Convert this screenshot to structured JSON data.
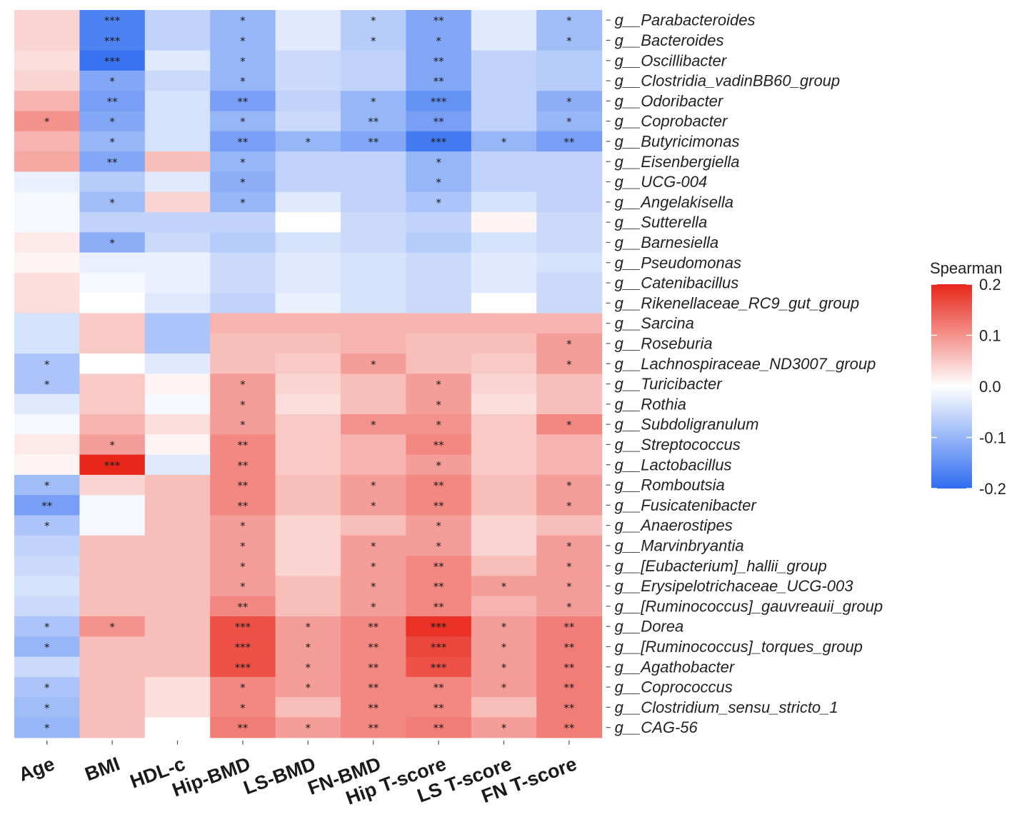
{
  "chart_data": {
    "type": "heatmap",
    "title": "",
    "legend_title": "Spearman",
    "legend_ticks": [
      0.2,
      0.1,
      0.0,
      -0.1,
      -0.2
    ],
    "legend_tick_labels": [
      "0.2",
      "0.1",
      "0.0",
      "-0.1",
      "-0.2"
    ],
    "color_range": [
      -0.2,
      0.2
    ],
    "colors": {
      "low": "#2f6cf0",
      "mid": "#ffffff",
      "high": "#e8261a"
    },
    "legend_position": "right",
    "columns": [
      "Age",
      "BMI",
      "HDL-c",
      "Hip-BMD",
      "LS-BMD",
      "FN-BMD",
      "Hip T-score",
      "LS T-score",
      "FN T-score"
    ],
    "rows": [
      "g__Parabacteroides",
      "g__Bacteroides",
      "g__Oscillibacter",
      "g__Clostridia_vadinBB60_group",
      "g__Odoribacter",
      "g__Coprobacter",
      "g__Butyricimonas",
      "g__Eisenbergiella",
      "g__UCG-004",
      "g__Angelakisella",
      "g__Sutterella",
      "g__Barnesiella",
      "g__Pseudomonas",
      "g__Catenibacillus",
      "g__Rikenellaceae_RC9_gut_group",
      "g__Sarcina",
      "g__Roseburia",
      "g__Lachnospiraceae_ND3007_group",
      "g__Turicibacter",
      "g__Rothia",
      "g__Subdoligranulum",
      "g__Streptococcus",
      "g__Lactobacillus",
      "g__Romboutsia",
      "g__Fusicatenibacter",
      "g__Anaerostipes",
      "g__Marvinbryantia",
      "g__[Eubacterium]_hallii_group",
      "g__Erysipelotrichaceae_UCG-003",
      "g__[Ruminococcus]_gauvreauii_group",
      "g__Dorea",
      "g__[Ruminococcus]_torques_group",
      "g__Agathobacter",
      "g__Coprococcus",
      "g__Clostridium_sensu_stricto_1",
      "g__CAG-56"
    ],
    "values": [
      [
        0.04,
        -0.17,
        -0.06,
        -0.1,
        -0.03,
        -0.07,
        -0.12,
        -0.03,
        -0.09
      ],
      [
        0.04,
        -0.17,
        -0.06,
        -0.1,
        -0.03,
        -0.07,
        -0.12,
        -0.03,
        -0.09
      ],
      [
        0.03,
        -0.19,
        -0.03,
        -0.1,
        -0.05,
        -0.06,
        -0.12,
        -0.06,
        -0.07
      ],
      [
        0.04,
        -0.12,
        -0.05,
        -0.1,
        -0.05,
        -0.06,
        -0.12,
        -0.06,
        -0.07
      ],
      [
        0.07,
        -0.13,
        -0.04,
        -0.13,
        -0.06,
        -0.1,
        -0.15,
        -0.06,
        -0.11
      ],
      [
        0.1,
        -0.12,
        -0.04,
        -0.1,
        -0.05,
        -0.1,
        -0.13,
        -0.06,
        -0.1
      ],
      [
        0.07,
        -0.1,
        -0.04,
        -0.13,
        -0.1,
        -0.12,
        -0.18,
        -0.1,
        -0.13
      ],
      [
        0.08,
        -0.12,
        0.06,
        -0.1,
        -0.06,
        -0.06,
        -0.1,
        -0.06,
        -0.06
      ],
      [
        -0.02,
        -0.07,
        -0.03,
        -0.11,
        -0.06,
        -0.06,
        -0.1,
        -0.06,
        -0.06
      ],
      [
        -0.01,
        -0.09,
        0.04,
        -0.1,
        -0.03,
        -0.06,
        -0.08,
        -0.04,
        -0.06
      ],
      [
        -0.01,
        -0.06,
        -0.06,
        -0.06,
        0.0,
        -0.05,
        -0.06,
        0.01,
        -0.05
      ],
      [
        0.02,
        -0.11,
        -0.05,
        -0.07,
        -0.04,
        -0.05,
        -0.07,
        -0.04,
        -0.05
      ],
      [
        0.01,
        -0.02,
        -0.02,
        -0.05,
        -0.03,
        -0.04,
        -0.05,
        -0.03,
        -0.04
      ],
      [
        0.03,
        -0.01,
        -0.02,
        -0.05,
        -0.03,
        -0.04,
        -0.05,
        -0.03,
        -0.05
      ],
      [
        0.03,
        0.0,
        -0.03,
        -0.06,
        -0.02,
        -0.04,
        -0.05,
        0.0,
        -0.05
      ],
      [
        -0.04,
        0.05,
        -0.08,
        0.07,
        0.07,
        0.07,
        0.07,
        0.07,
        0.07
      ],
      [
        -0.04,
        0.05,
        -0.08,
        0.06,
        0.06,
        0.07,
        0.06,
        0.06,
        0.09
      ],
      [
        -0.08,
        0.0,
        -0.03,
        0.06,
        0.05,
        0.09,
        0.06,
        0.05,
        0.09
      ],
      [
        -0.08,
        0.05,
        0.01,
        0.09,
        0.04,
        0.06,
        0.09,
        0.04,
        0.06
      ],
      [
        -0.03,
        0.05,
        -0.01,
        0.09,
        0.03,
        0.06,
        0.09,
        0.03,
        0.06
      ],
      [
        -0.01,
        0.07,
        0.03,
        0.09,
        0.05,
        0.1,
        0.1,
        0.05,
        0.11
      ],
      [
        0.02,
        0.09,
        0.01,
        0.11,
        0.05,
        0.07,
        0.11,
        0.05,
        0.07
      ],
      [
        0.01,
        0.2,
        -0.03,
        0.11,
        0.05,
        0.07,
        0.09,
        0.05,
        0.07
      ],
      [
        -0.09,
        0.04,
        0.06,
        0.11,
        0.06,
        0.09,
        0.11,
        0.06,
        0.09
      ],
      [
        -0.13,
        -0.01,
        0.06,
        0.11,
        0.06,
        0.09,
        0.11,
        0.06,
        0.09
      ],
      [
        -0.08,
        -0.01,
        0.06,
        0.09,
        0.04,
        0.06,
        0.09,
        0.04,
        0.06
      ],
      [
        -0.06,
        0.06,
        0.06,
        0.09,
        0.04,
        0.09,
        0.09,
        0.04,
        0.09
      ],
      [
        -0.05,
        0.06,
        0.06,
        0.09,
        0.04,
        0.09,
        0.11,
        0.06,
        0.09
      ],
      [
        -0.04,
        0.06,
        0.06,
        0.09,
        0.06,
        0.09,
        0.11,
        0.09,
        0.09
      ],
      [
        -0.05,
        0.06,
        0.06,
        0.11,
        0.06,
        0.09,
        0.11,
        0.07,
        0.09
      ],
      [
        -0.08,
        0.1,
        0.06,
        0.16,
        0.09,
        0.11,
        0.19,
        0.09,
        0.12
      ],
      [
        -0.1,
        0.06,
        0.06,
        0.16,
        0.09,
        0.11,
        0.17,
        0.09,
        0.12
      ],
      [
        -0.05,
        0.06,
        0.06,
        0.16,
        0.09,
        0.11,
        0.16,
        0.09,
        0.12
      ],
      [
        -0.08,
        0.06,
        0.03,
        0.11,
        0.09,
        0.11,
        0.11,
        0.09,
        0.12
      ],
      [
        -0.09,
        0.06,
        0.03,
        0.11,
        0.06,
        0.11,
        0.11,
        0.06,
        0.12
      ],
      [
        -0.1,
        0.06,
        0.0,
        0.12,
        0.09,
        0.11,
        0.12,
        0.09,
        0.12
      ]
    ],
    "significance": [
      [
        "",
        "***",
        "",
        "*",
        "",
        "*",
        "**",
        "",
        "*"
      ],
      [
        "",
        "***",
        "",
        "*",
        "",
        "*",
        "*",
        "",
        "*"
      ],
      [
        "",
        "***",
        "",
        "*",
        "",
        "",
        "**",
        "",
        ""
      ],
      [
        "",
        "*",
        "",
        "*",
        "",
        "",
        "**",
        "",
        ""
      ],
      [
        "",
        "**",
        "",
        "**",
        "",
        "*",
        "***",
        "",
        "*"
      ],
      [
        "*",
        "*",
        "",
        "*",
        "",
        "**",
        "**",
        "",
        "*"
      ],
      [
        "",
        "*",
        "",
        "**",
        "*",
        "**",
        "***",
        "*",
        "**"
      ],
      [
        "",
        "**",
        "",
        "*",
        "",
        "",
        "*",
        "",
        ""
      ],
      [
        "",
        "",
        "",
        "*",
        "",
        "",
        "*",
        "",
        ""
      ],
      [
        "",
        "*",
        "",
        "*",
        "",
        "",
        "*",
        "",
        ""
      ],
      [
        "",
        "",
        "",
        "",
        "",
        "",
        "",
        "",
        ""
      ],
      [
        "",
        "*",
        "",
        "",
        "",
        "",
        "",
        "",
        ""
      ],
      [
        "",
        "",
        "",
        "",
        "",
        "",
        "",
        "",
        ""
      ],
      [
        "",
        "",
        "",
        "",
        "",
        "",
        "",
        "",
        ""
      ],
      [
        "",
        "",
        "",
        "",
        "",
        "",
        "",
        "",
        ""
      ],
      [
        "",
        "",
        "",
        "",
        "",
        "",
        "",
        "",
        ""
      ],
      [
        "",
        "",
        "",
        "",
        "",
        "",
        "",
        "",
        "*"
      ],
      [
        "*",
        "",
        "",
        "",
        "",
        "*",
        "",
        "",
        "*"
      ],
      [
        "*",
        "",
        "",
        "*",
        "",
        "",
        "*",
        "",
        ""
      ],
      [
        "",
        "",
        "",
        "*",
        "",
        "",
        "*",
        "",
        ""
      ],
      [
        "",
        "",
        "",
        "*",
        "",
        "*",
        "*",
        "",
        "*"
      ],
      [
        "",
        "*",
        "",
        "**",
        "",
        "",
        "**",
        "",
        ""
      ],
      [
        "",
        "***",
        "",
        "**",
        "",
        "",
        "*",
        "",
        ""
      ],
      [
        "*",
        "",
        "",
        "**",
        "",
        "*",
        "**",
        "",
        "*"
      ],
      [
        "**",
        "",
        "",
        "**",
        "",
        "*",
        "**",
        "",
        "*"
      ],
      [
        "*",
        "",
        "",
        "*",
        "",
        "",
        "*",
        "",
        ""
      ],
      [
        "",
        "",
        "",
        "*",
        "",
        "*",
        "*",
        "",
        "*"
      ],
      [
        "",
        "",
        "",
        "*",
        "",
        "*",
        "**",
        "",
        "*"
      ],
      [
        "",
        "",
        "",
        "*",
        "",
        "*",
        "**",
        "*",
        "*"
      ],
      [
        "",
        "",
        "",
        "**",
        "",
        "*",
        "**",
        "",
        "*"
      ],
      [
        "*",
        "*",
        "",
        "***",
        "*",
        "**",
        "***",
        "*",
        "**"
      ],
      [
        "*",
        "",
        "",
        "***",
        "*",
        "**",
        "***",
        "*",
        "**"
      ],
      [
        "",
        "",
        "",
        "***",
        "*",
        "**",
        "***",
        "*",
        "**"
      ],
      [
        "*",
        "",
        "",
        "*",
        "*",
        "**",
        "**",
        "*",
        "**"
      ],
      [
        "*",
        "",
        "",
        "*",
        "",
        "**",
        "**",
        "",
        "**"
      ],
      [
        "*",
        "",
        "",
        "**",
        "*",
        "**",
        "**",
        "*",
        "**"
      ]
    ]
  }
}
